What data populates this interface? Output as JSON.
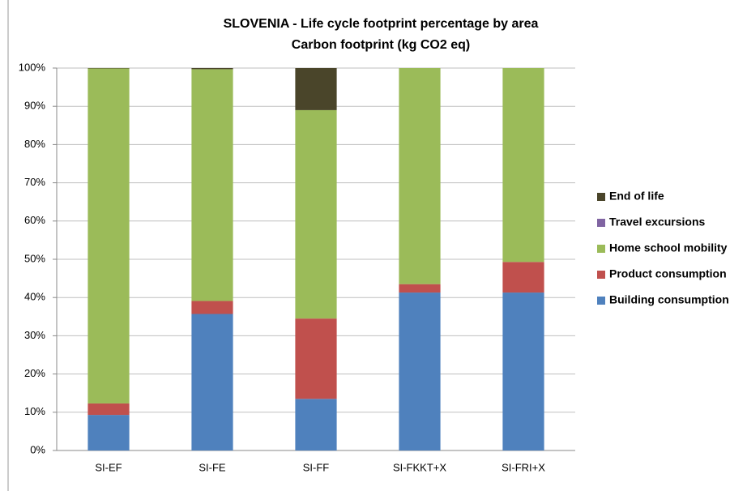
{
  "chart_data": {
    "type": "stacked_bar",
    "title": "SLOVENIA - Life cycle footprint percentage by area",
    "subtitle": "Carbon footprint (kg CO2 eq)",
    "categories": [
      "SI-EF",
      "SI-FE",
      "SI-FF",
      "SI-FKKT+X",
      "SI-FRI+X"
    ],
    "series": [
      {
        "name": "Building consumption",
        "color": "#4f81bd",
        "values": [
          9.3,
          35.7,
          13.5,
          41.3,
          41.3
        ]
      },
      {
        "name": "Product consumption",
        "color": "#c0504d",
        "values": [
          3.0,
          3.4,
          21.0,
          2.2,
          8.0
        ]
      },
      {
        "name": "Home school mobility",
        "color": "#9bbb59",
        "values": [
          87.6,
          60.6,
          54.5,
          56.5,
          50.7
        ]
      },
      {
        "name": "Travel excursions",
        "color": "#8064a2",
        "values": [
          0,
          0,
          0,
          0,
          0
        ]
      },
      {
        "name": "End of life",
        "color": "#4a452a",
        "values": [
          0.1,
          0.3,
          11.0,
          0,
          0
        ]
      }
    ],
    "ylim": [
      0,
      100
    ],
    "yticks": [
      {
        "value": 0,
        "label": "0%"
      },
      {
        "value": 10,
        "label": "10%"
      },
      {
        "value": 20,
        "label": "20%"
      },
      {
        "value": 30,
        "label": "30%"
      },
      {
        "value": 40,
        "label": "40%"
      },
      {
        "value": 50,
        "label": "50%"
      },
      {
        "value": 60,
        "label": "60%"
      },
      {
        "value": 70,
        "label": "70%"
      },
      {
        "value": 80,
        "label": "80%"
      },
      {
        "value": 90,
        "label": "90%"
      },
      {
        "value": 100,
        "label": "100%"
      }
    ],
    "grid": true,
    "legend": "right"
  }
}
